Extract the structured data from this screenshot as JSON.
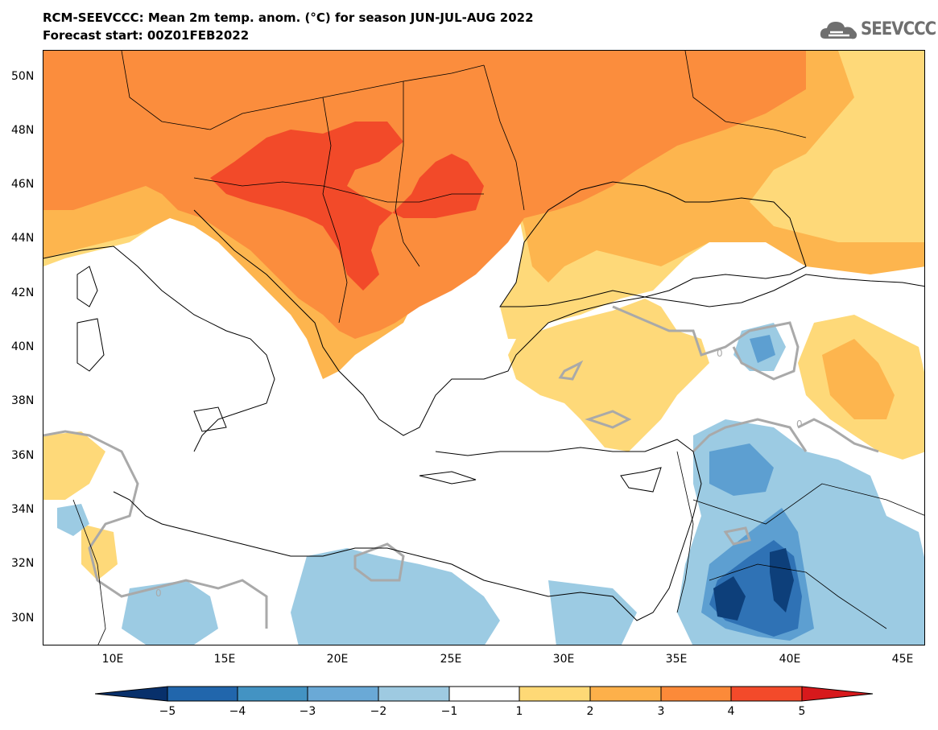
{
  "title": {
    "line1": "RCM-SEEVCCC: Mean 2m temp. anom. (°C) for season JUN-JUL-AUG 2022",
    "line2": "Forecast start: 00Z01FEB2022"
  },
  "logo": {
    "text": "SEEVCCC",
    "icon": "cloud-icon"
  },
  "map": {
    "lat_labels": [
      "50N",
      "48N",
      "46N",
      "44N",
      "42N",
      "40N",
      "38N",
      "36N",
      "34N",
      "32N",
      "30N"
    ],
    "lon_labels": [
      "10E",
      "15E",
      "20E",
      "25E",
      "30E",
      "35E",
      "40E",
      "45E"
    ],
    "contour_label": "0",
    "colors": {
      "land": "#ffffff",
      "sea": "#ffffff",
      "anom_p1": "#fed979",
      "anom_p2": "#fdb54e",
      "anom_p3": "#fb8d3d",
      "anom_p4": "#f24a29",
      "anom_n1": "#9ccbe3",
      "anom_n2": "#5d9fd1",
      "anom_n3": "#2f72b5",
      "anom_n4": "#0d3f7a"
    }
  },
  "colorbar": {
    "labels": [
      "−5",
      "−4",
      "−3",
      "−2",
      "−1",
      "1",
      "2",
      "3",
      "4",
      "5"
    ],
    "colors": [
      "#08306b",
      "#2166ac",
      "#4393c3",
      "#6aa9d6",
      "#9ecae1",
      "#ffffff",
      "#fed976",
      "#fdb04a",
      "#fc8a39",
      "#f34a2a",
      "#d7191c"
    ]
  }
}
